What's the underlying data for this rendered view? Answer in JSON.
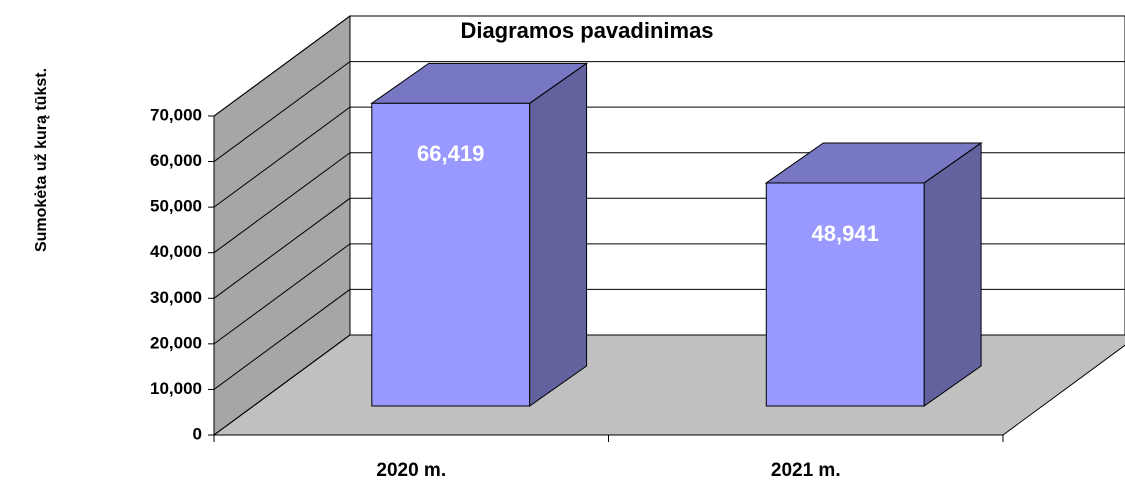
{
  "chart_data": {
    "type": "bar3d",
    "title": "Diagramos pavadinimas",
    "y_label": "Sumokėta už kurą tūkst.",
    "categories": [
      "2020 m.",
      "2021 m."
    ],
    "values": [
      66419,
      48941
    ],
    "value_labels": [
      "66,419",
      "48,941"
    ],
    "color": "#9999ff",
    "ylim": [
      0,
      70000
    ],
    "yticks": [
      0,
      {
        "value": 10000,
        "label": "10,000"
      },
      {
        "value": 20000,
        "label": "20,000"
      },
      {
        "value": 30000,
        "label": "30,000"
      },
      {
        "value": 40000,
        "label": "40,000"
      },
      {
        "value": 50000,
        "label": "50,000"
      },
      {
        "value": 60000,
        "label": "60,000"
      },
      {
        "value": 70000,
        "label": "70,000"
      }
    ],
    "grid": true
  }
}
